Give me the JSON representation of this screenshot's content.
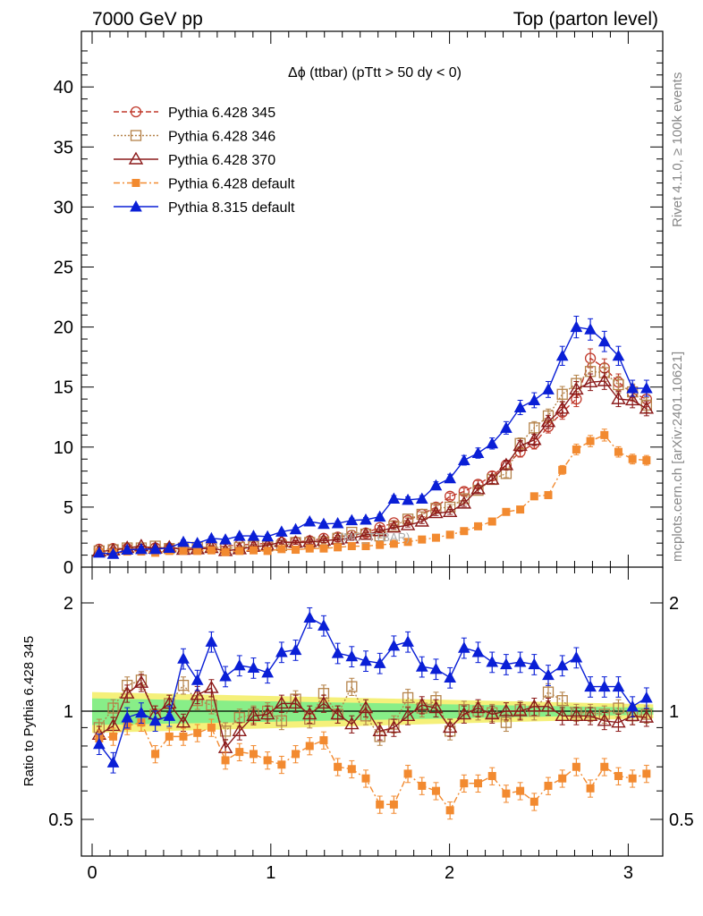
{
  "header": {
    "left": "7000 GeV pp",
    "right": "Top (parton level)"
  },
  "side_labels": {
    "right_top": "Rivet 4.1.0, ≥ 100k events",
    "right_bottom": "mcplots.cern.ch [arXiv:2401.10621]"
  },
  "watermark": "(MC_TTBAR)",
  "colors": {
    "p345": "#c0392b",
    "p346": "#b5834a",
    "p370": "#8b1a1a",
    "p6def": "#f28a30",
    "p8def": "#0a1fd6",
    "band_yellow": "#f5f07a",
    "band_green": "#88ee88"
  },
  "chart_data": [
    {
      "type": "line",
      "title": "Δϕ (ttbar) (pTtt > 50 dy < 0)",
      "xlabel": "",
      "ylabel": "",
      "xlim": [
        -0.05,
        3.2
      ],
      "ylim": [
        0,
        44
      ],
      "yticks": [
        "0",
        "5",
        "10",
        "15",
        "20",
        "25",
        "30",
        "35",
        "40"
      ],
      "x": [
        0.0393,
        0.1178,
        0.1963,
        0.2749,
        0.3534,
        0.432,
        0.5105,
        0.589,
        0.6676,
        0.7461,
        0.8247,
        0.9032,
        0.9817,
        1.0603,
        1.1388,
        1.2174,
        1.2959,
        1.3744,
        1.453,
        1.5315,
        1.6101,
        1.6886,
        1.7671,
        1.8457,
        1.9242,
        2.0028,
        2.0813,
        2.1598,
        2.2384,
        2.3169,
        2.3955,
        2.474,
        2.5525,
        2.6311,
        2.7096,
        2.7882,
        2.8667,
        2.9452,
        3.0238,
        3.1023
      ],
      "series": [
        {
          "name": "Pythia 6.428 345",
          "key": "p345",
          "style": "dashed",
          "marker": "circle-open",
          "values": [
            1.5,
            1.55,
            1.55,
            1.5,
            1.6,
            1.6,
            1.6,
            1.6,
            1.65,
            1.75,
            1.85,
            1.9,
            2.0,
            2.05,
            2.1,
            2.2,
            2.4,
            2.5,
            2.65,
            2.85,
            3.3,
            3.7,
            3.9,
            4.4,
            5.0,
            5.9,
            6.3,
            6.9,
            7.6,
            8.5,
            9.6,
            10.3,
            11.7,
            12.9,
            14.0,
            17.4,
            16.6,
            15.4,
            14.5,
            14.0
          ]
        },
        {
          "name": "Pythia 6.428 346",
          "key": "p346",
          "style": "dotted",
          "marker": "square-open",
          "values": [
            1.35,
            1.45,
            1.6,
            1.6,
            1.75,
            1.55,
            1.6,
            1.65,
            1.7,
            1.55,
            1.65,
            1.75,
            1.75,
            1.8,
            2.05,
            2.05,
            2.1,
            2.4,
            2.9,
            2.75,
            2.6,
            3.4,
            4.0,
            4.4,
            4.9,
            5.0,
            5.7,
            6.4,
            7.3,
            7.8,
            10.3,
            11.6,
            12.6,
            14.4,
            15.3,
            16.3,
            16.2,
            15.2,
            14.6,
            13.5
          ]
        },
        {
          "name": "Pythia 6.428 370",
          "key": "p370",
          "style": "solid",
          "marker": "triangle-open",
          "values": [
            1.3,
            1.4,
            1.6,
            1.75,
            1.55,
            1.65,
            1.45,
            1.5,
            1.6,
            1.35,
            1.5,
            1.7,
            1.8,
            2.1,
            2.05,
            2.1,
            2.2,
            2.3,
            2.4,
            2.7,
            3.0,
            3.3,
            3.5,
            3.8,
            4.5,
            4.6,
            5.3,
            6.5,
            7.3,
            8.5,
            10.1,
            10.6,
            12.1,
            13.2,
            14.8,
            15.4,
            15.5,
            14.0,
            13.9,
            13.2
          ]
        },
        {
          "name": "Pythia 6.428 default",
          "key": "p6def",
          "style": "dashdot",
          "marker": "square-filled",
          "values": [
            1.25,
            1.2,
            1.3,
            1.3,
            1.2,
            1.35,
            1.35,
            1.35,
            1.4,
            1.25,
            1.35,
            1.4,
            1.35,
            1.5,
            1.45,
            1.55,
            1.55,
            1.65,
            1.75,
            1.75,
            1.85,
            1.95,
            2.1,
            2.3,
            2.45,
            2.7,
            3.0,
            3.4,
            3.8,
            4.6,
            4.8,
            5.9,
            6.0,
            8.1,
            9.8,
            10.5,
            11.0,
            9.6,
            9.0,
            8.9
          ]
        },
        {
          "name": "Pythia 8.315 default",
          "key": "p8def",
          "style": "solid",
          "marker": "triangle-filled",
          "values": [
            1.2,
            1.1,
            1.45,
            1.5,
            1.5,
            1.6,
            2.1,
            2.0,
            2.4,
            2.3,
            2.6,
            2.6,
            2.55,
            2.95,
            3.15,
            3.8,
            3.6,
            3.65,
            3.9,
            3.95,
            4.2,
            5.7,
            5.6,
            5.7,
            6.8,
            7.4,
            8.9,
            9.5,
            10.3,
            11.6,
            13.3,
            13.9,
            14.8,
            17.6,
            20.0,
            19.8,
            18.8,
            17.6,
            14.9,
            14.9
          ]
        }
      ]
    },
    {
      "type": "line",
      "title": "",
      "xlabel": "",
      "ylabel": "Ratio to Pythia 6.428 345",
      "xlim": [
        -0.05,
        3.2
      ],
      "ylim": [
        0.38,
        2.3
      ],
      "yticks": [
        "0.5",
        "1",
        "2"
      ],
      "xticks": [
        "0",
        "1",
        "2",
        "3"
      ],
      "band_yellow_halfwidth": [
        0.13,
        0.045
      ],
      "band_green_halfwidth": [
        0.085,
        0.022
      ],
      "reference": 1,
      "x": [
        0.0393,
        0.1178,
        0.1963,
        0.2749,
        0.3534,
        0.432,
        0.5105,
        0.589,
        0.6676,
        0.7461,
        0.8247,
        0.9032,
        0.9817,
        1.0603,
        1.1388,
        1.2174,
        1.2959,
        1.3744,
        1.453,
        1.5315,
        1.6101,
        1.6886,
        1.7671,
        1.8457,
        1.9242,
        2.0028,
        2.0813,
        2.1598,
        2.2384,
        2.3169,
        2.3955,
        2.474,
        2.5525,
        2.6311,
        2.7096,
        2.7882,
        2.8667,
        2.9452,
        3.0238,
        3.1023
      ],
      "series": [
        {
          "name": "Pythia 6.428 346",
          "key": "p346",
          "style": "dotted",
          "marker": "square-open",
          "values": [
            0.9,
            1.02,
            1.18,
            1.22,
            0.98,
            1.05,
            1.18,
            1.07,
            1.04,
            0.88,
            0.96,
            0.98,
            1.0,
            0.94,
            1.08,
            0.95,
            1.12,
            0.98,
            1.17,
            0.97,
            0.85,
            0.92,
            1.09,
            1.02,
            1.07,
            0.88,
            1.01,
            1.0,
            0.99,
            0.93,
            1.01,
            1.0,
            1.13,
            1.07,
            0.99,
            0.99,
            0.98,
            1.02,
            0.97,
            0.98
          ]
        },
        {
          "name": "Pythia 6.428 370",
          "key": "p370",
          "style": "solid",
          "marker": "triangle-open",
          "values": [
            0.86,
            0.91,
            1.12,
            1.2,
            0.98,
            1.05,
            0.93,
            1.11,
            1.16,
            0.79,
            0.88,
            0.97,
            0.98,
            1.05,
            1.05,
            0.98,
            1.05,
            0.98,
            0.92,
            1.02,
            0.88,
            0.9,
            0.97,
            1.04,
            1.02,
            0.9,
            0.98,
            1.02,
            0.98,
            1.0,
            1.0,
            1.03,
            1.03,
            0.97,
            0.97,
            0.97,
            0.94,
            0.93,
            0.97,
            0.96
          ]
        },
        {
          "name": "Pythia 6.428 default",
          "key": "p6def",
          "style": "dashdot",
          "marker": "square-filled",
          "values": [
            0.84,
            0.85,
            0.91,
            0.93,
            0.76,
            0.85,
            0.85,
            0.87,
            0.9,
            0.73,
            0.77,
            0.76,
            0.73,
            0.71,
            0.76,
            0.8,
            0.83,
            0.7,
            0.69,
            0.65,
            0.55,
            0.55,
            0.67,
            0.62,
            0.6,
            0.53,
            0.63,
            0.63,
            0.66,
            0.59,
            0.6,
            0.56,
            0.62,
            0.65,
            0.7,
            0.61,
            0.7,
            0.66,
            0.65,
            0.67
          ]
        },
        {
          "name": "Pythia 8.315 default",
          "key": "p8def",
          "style": "solid",
          "marker": "triangle-filled",
          "values": [
            0.81,
            0.72,
            0.96,
            0.99,
            0.94,
            0.97,
            1.4,
            1.22,
            1.56,
            1.25,
            1.34,
            1.32,
            1.28,
            1.46,
            1.48,
            1.82,
            1.73,
            1.45,
            1.42,
            1.38,
            1.36,
            1.52,
            1.56,
            1.33,
            1.31,
            1.24,
            1.5,
            1.46,
            1.37,
            1.35,
            1.37,
            1.35,
            1.26,
            1.34,
            1.41,
            1.17,
            1.17,
            1.17,
            1.03,
            1.09
          ]
        }
      ]
    }
  ]
}
